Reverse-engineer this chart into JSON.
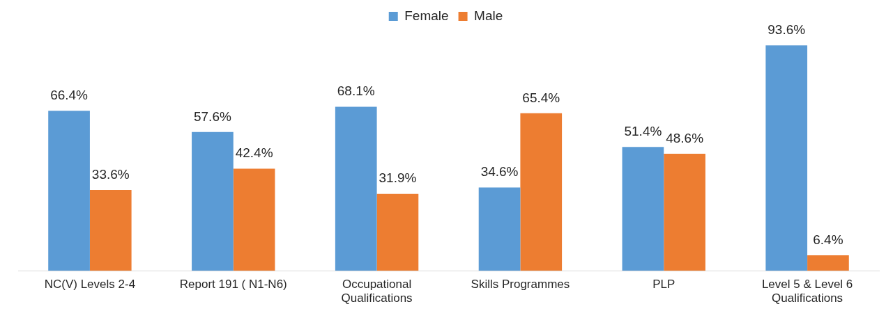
{
  "chart_data": {
    "type": "bar",
    "categories": [
      "NC(V) Levels 2-4",
      "Report 191 ( N1-N6)",
      "Occupational Qualifications",
      "Skills Programmes",
      "PLP",
      "Level 5 & Level 6 Qualifications"
    ],
    "series": [
      {
        "name": "Female",
        "color": "#5b9bd5",
        "values": [
          66.4,
          57.6,
          68.1,
          34.6,
          51.4,
          93.6
        ],
        "value_labels": [
          "66.4%",
          "57.6%",
          "68.1%",
          "34.6%",
          "51.4%",
          "93.6%"
        ]
      },
      {
        "name": "Male",
        "color": "#ed7d31",
        "values": [
          33.6,
          42.4,
          31.9,
          65.4,
          48.6,
          6.4
        ],
        "value_labels": [
          "33.6%",
          "42.4%",
          "31.9%",
          "65.4%",
          "48.6%",
          "6.4%"
        ]
      }
    ],
    "legend": "top"
  }
}
